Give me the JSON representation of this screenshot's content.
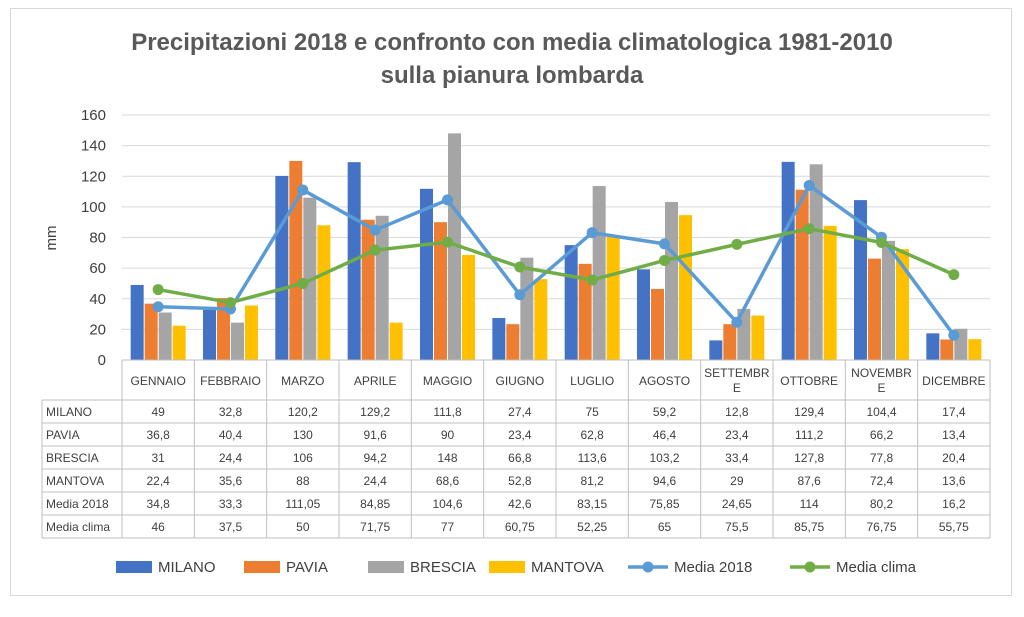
{
  "chart_data": {
    "type": "bar",
    "title_lines": [
      "Precipitazioni 2018 e confronto con media climatologica 1981-2010",
      "sulla pianura lombarda"
    ],
    "ylabel": "mm",
    "ylim": [
      0,
      160
    ],
    "yticks": [
      0,
      20,
      40,
      60,
      80,
      100,
      120,
      140,
      160
    ],
    "grid": true,
    "legend_position": "bottom",
    "categories": [
      [
        "GENNAIO"
      ],
      [
        "FEBBRAIO"
      ],
      [
        "MARZO"
      ],
      [
        "APRILE"
      ],
      [
        "MAGGIO"
      ],
      [
        "GIUGNO"
      ],
      [
        "LUGLIO"
      ],
      [
        "AGOSTO"
      ],
      [
        "SETTEMBR",
        "E"
      ],
      [
        "OTTOBRE"
      ],
      [
        "NOVEMBR",
        "E"
      ],
      [
        "DICEMBRE"
      ]
    ],
    "series": [
      {
        "name": "MILANO",
        "kind": "bar",
        "color": "#4472C4",
        "values": [
          49,
          32.8,
          120.2,
          129.2,
          111.8,
          27.4,
          75,
          59.2,
          12.8,
          129.4,
          104.4,
          17.4
        ],
        "table_values": [
          "49",
          "32,8",
          "120,2",
          "129,2",
          "111,8",
          "27,4",
          "75",
          "59,2",
          "12,8",
          "129,4",
          "104,4",
          "17,4"
        ]
      },
      {
        "name": "PAVIA",
        "kind": "bar",
        "color": "#ED7D31",
        "values": [
          36.8,
          40.4,
          130,
          91.6,
          90,
          23.4,
          62.8,
          46.4,
          23.4,
          111.2,
          66.2,
          13.4
        ],
        "table_values": [
          "36,8",
          "40,4",
          "130",
          "91,6",
          "90",
          "23,4",
          "62,8",
          "46,4",
          "23,4",
          "111,2",
          "66,2",
          "13,4"
        ]
      },
      {
        "name": "BRESCIA",
        "kind": "bar",
        "color": "#A5A5A5",
        "values": [
          31,
          24.4,
          106,
          94.2,
          148,
          66.8,
          113.6,
          103.2,
          33.4,
          127.8,
          77.8,
          20.4
        ],
        "table_values": [
          "31",
          "24,4",
          "106",
          "94,2",
          "148",
          "66,8",
          "113,6",
          "103,2",
          "33,4",
          "127,8",
          "77,8",
          "20,4"
        ]
      },
      {
        "name": "MANTOVA",
        "kind": "bar",
        "color": "#FFC000",
        "values": [
          22.4,
          35.6,
          88,
          24.4,
          68.6,
          52.8,
          81.2,
          94.6,
          29,
          87.6,
          72.4,
          13.6
        ],
        "table_values": [
          "22,4",
          "35,6",
          "88",
          "24,4",
          "68,6",
          "52,8",
          "81,2",
          "94,6",
          "29",
          "87,6",
          "72,4",
          "13,6"
        ]
      },
      {
        "name": "Media 2018",
        "kind": "line",
        "color": "#5B9BD5",
        "values": [
          34.8,
          33.3,
          111.05,
          84.85,
          104.6,
          42.6,
          83.15,
          75.85,
          24.65,
          114,
          80.2,
          16.2
        ],
        "table_values": [
          "34,8",
          "33,3",
          "111,05",
          "84,85",
          "104,6",
          "42,6",
          "83,15",
          "75,85",
          "24,65",
          "114",
          "80,2",
          "16,2"
        ]
      },
      {
        "name": "Media clima",
        "kind": "line",
        "color": "#70AD47",
        "values": [
          46,
          37.5,
          50,
          71.75,
          77,
          60.75,
          52.25,
          65,
          75.5,
          85.75,
          76.75,
          55.75
        ],
        "table_values": [
          "46",
          "37,5",
          "50",
          "71,75",
          "77",
          "60,75",
          "52,25",
          "65",
          "75,5",
          "85,75",
          "76,75",
          "55,75"
        ]
      }
    ],
    "colors": {
      "grid": "#d9d9d9",
      "table_border": "#bfbfbf",
      "text": "#404040",
      "title": "#595959"
    }
  }
}
